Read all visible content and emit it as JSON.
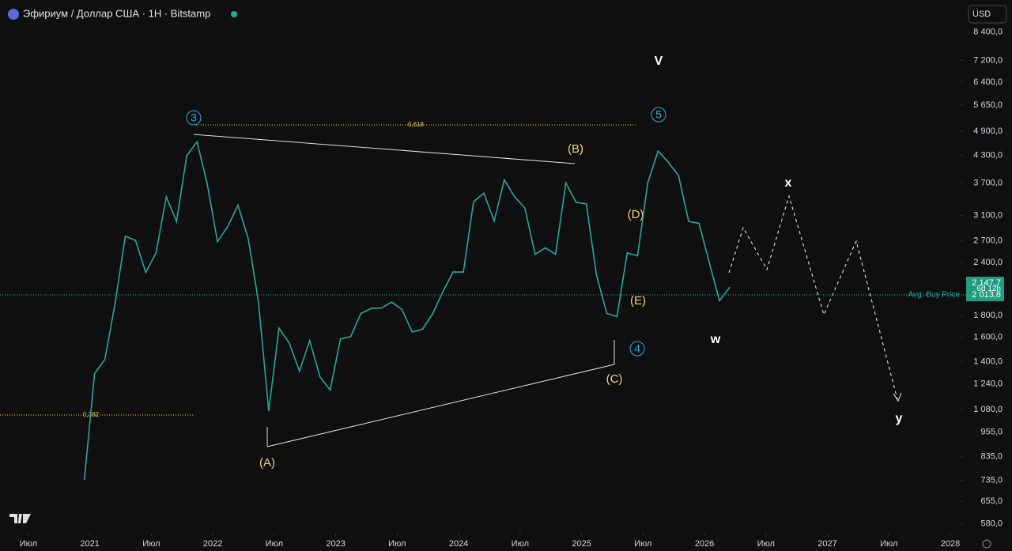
{
  "header": {
    "title": "Эфириум / Доллар США · 1Н · Bitstamp",
    "currency": "USD"
  },
  "chart_data": {
    "type": "line",
    "log_scale": true,
    "grid": false,
    "x": [
      "2020-12",
      "2021-01",
      "2021-02",
      "2021-03",
      "2021-04",
      "2021-05",
      "2021-06",
      "2021-07",
      "2021-08",
      "2021-09",
      "2021-10",
      "2021-11",
      "2021-12",
      "2022-01",
      "2022-02",
      "2022-03",
      "2022-04",
      "2022-05",
      "2022-06",
      "2022-07",
      "2022-08",
      "2022-09",
      "2022-10",
      "2022-11",
      "2022-12",
      "2023-01",
      "2023-02",
      "2023-03",
      "2023-04",
      "2023-05",
      "2023-06",
      "2023-07",
      "2023-08",
      "2023-09",
      "2023-10",
      "2023-11",
      "2023-12",
      "2024-01",
      "2024-02",
      "2024-03",
      "2024-04",
      "2024-05",
      "2024-06",
      "2024-07",
      "2024-08",
      "2024-09",
      "2024-10",
      "2024-11",
      "2024-12",
      "2025-01",
      "2025-02",
      "2025-03",
      "2025-04",
      "2025-05",
      "2025-06",
      "2025-07",
      "2025-08",
      "2025-09",
      "2025-10",
      "2025-11",
      "2025-12",
      "2026-01",
      "2026-02",
      "2026-03"
    ],
    "series": [
      {
        "name": "ETHUSD",
        "color": "#26a69a",
        "values": [
          737,
          1312,
          1418,
          1918,
          2770,
          2707,
          2275,
          2530,
          3430,
          3000,
          4290,
          4630,
          3680,
          2690,
          2920,
          3280,
          2730,
          1940,
          1070,
          1680,
          1550,
          1330,
          1570,
          1290,
          1200,
          1585,
          1605,
          1820,
          1870,
          1875,
          1935,
          1860,
          1645,
          1670,
          1815,
          2050,
          2280,
          2280,
          3340,
          3500,
          3010,
          3760,
          3430,
          3230,
          2510,
          2600,
          2510,
          3700,
          3330,
          3300,
          2240,
          1820,
          1790,
          2530,
          2490,
          3700,
          4400,
          4140,
          3850,
          3000,
          2970,
          2400,
          1950,
          2100
        ]
      }
    ],
    "xlim": [
      "2020-04",
      "2028-02"
    ],
    "xticks": [
      {
        "value": "2020-07",
        "label": "Июл"
      },
      {
        "value": "2021-01",
        "label": "2021"
      },
      {
        "value": "2021-07",
        "label": "Июл"
      },
      {
        "value": "2022-01",
        "label": "2022"
      },
      {
        "value": "2022-07",
        "label": "Июл"
      },
      {
        "value": "2023-01",
        "label": "2023"
      },
      {
        "value": "2023-07",
        "label": "Июл"
      },
      {
        "value": "2024-01",
        "label": "2024"
      },
      {
        "value": "2024-07",
        "label": "Июл"
      },
      {
        "value": "2025-01",
        "label": "2025"
      },
      {
        "value": "2025-07",
        "label": "Июл"
      },
      {
        "value": "2026-01",
        "label": "2026"
      },
      {
        "value": "2026-07",
        "label": "Июл"
      },
      {
        "value": "2027-01",
        "label": "2027"
      },
      {
        "value": "2027-07",
        "label": "Июл"
      },
      {
        "value": "2028-01",
        "label": "2028"
      }
    ],
    "ylim": [
      550,
      10000
    ],
    "yticks": [
      {
        "value": 580,
        "label": "580,0"
      },
      {
        "value": 655,
        "label": "655,0"
      },
      {
        "value": 735,
        "label": "735,0"
      },
      {
        "value": 835,
        "label": "835,0"
      },
      {
        "value": 955,
        "label": "955,0"
      },
      {
        "value": 1080,
        "label": "1 080,0"
      },
      {
        "value": 1240,
        "label": "1 240,0"
      },
      {
        "value": 1400,
        "label": "1 400,0"
      },
      {
        "value": 1600,
        "label": "1 600,0"
      },
      {
        "value": 1800,
        "label": "1 800,0"
      },
      {
        "value": 2400,
        "label": "2 400,0"
      },
      {
        "value": 2700,
        "label": "2 700,0"
      },
      {
        "value": 3100,
        "label": "3 100,0"
      },
      {
        "value": 3700,
        "label": "3 700,0"
      },
      {
        "value": 4300,
        "label": "4 300,0"
      },
      {
        "value": 4900,
        "label": "4 900,0"
      },
      {
        "value": 5650,
        "label": "5 650,0"
      },
      {
        "value": 6400,
        "label": "6 400,0"
      },
      {
        "value": 7200,
        "label": "7 200,0"
      },
      {
        "value": 8400,
        "label": "8 400,0"
      }
    ],
    "current_price": {
      "value": 2147.7,
      "label": "2 147,7"
    },
    "countdown": "6d 12h",
    "avg_buy_price": {
      "value": 2013.8,
      "label": "2 013,8",
      "name": "Avg. Buy Price"
    },
    "annotations": [
      "3",
      "0,618",
      "5",
      "V",
      "(B)",
      "(D)",
      "(E)",
      "4",
      "(C)",
      "(A)",
      "w",
      "x",
      "y",
      "0,382"
    ]
  }
}
